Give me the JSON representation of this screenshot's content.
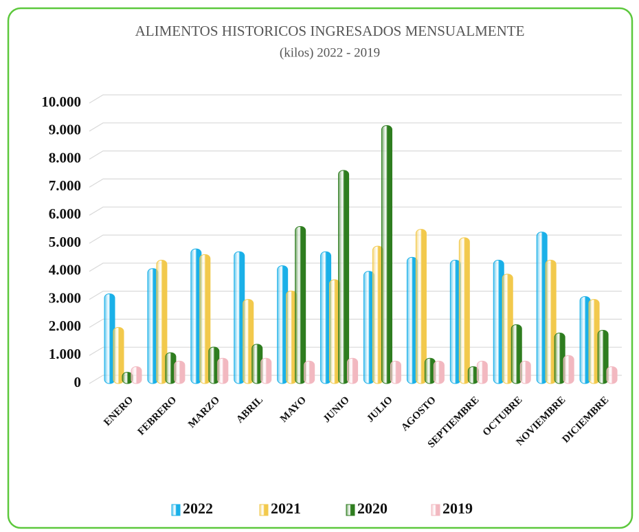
{
  "chart_data": {
    "type": "bar",
    "title": "ALIMENTOS HISTORICOS INGRESADOS MENSUALMENTE",
    "subtitle": "(kilos) 2022 - 2019",
    "categories": [
      "ENERO",
      "FEBRERO",
      "MARZO",
      "ABRIL",
      "MAYO",
      "JUNIO",
      "JULIO",
      "AGOSTO",
      "SEPTIEMBRE",
      "OCTUBRE",
      "NOVIEMBRE",
      "DICIEMBRE"
    ],
    "series": [
      {
        "name": "2022",
        "color": "#1ab0e8",
        "values": [
          3200,
          4100,
          4800,
          4700,
          4200,
          4700,
          4000,
          4500,
          4400,
          4400,
          5400,
          3100
        ]
      },
      {
        "name": "2021",
        "color": "#f2c94c",
        "values": [
          2000,
          4400,
          4600,
          3000,
          3300,
          3700,
          4900,
          5500,
          5200,
          3900,
          4400,
          3000
        ]
      },
      {
        "name": "2020",
        "color": "#2e7d1f",
        "values": [
          400,
          1100,
          1300,
          1400,
          5600,
          7600,
          9200,
          900,
          600,
          2100,
          1800,
          1900
        ]
      },
      {
        "name": "2019",
        "color": "#f2b8c0",
        "values": [
          600,
          800,
          900,
          900,
          800,
          900,
          800,
          800,
          800,
          800,
          1000,
          600
        ]
      }
    ],
    "ylim": [
      0,
      10000
    ],
    "yticks": [
      0,
      {
        "value": 1000,
        "label": "1.000"
      },
      {
        "value": 2000,
        "label": "2.000"
      },
      {
        "value": 3000,
        "label": "3.000"
      },
      {
        "value": 4000,
        "label": "4.000"
      },
      {
        "value": 5000,
        "label": "5.000"
      },
      {
        "value": 6000,
        "label": "6.000"
      },
      {
        "value": 7000,
        "label": "7.000"
      },
      {
        "value": 8000,
        "label": "8.000"
      },
      {
        "value": 9000,
        "label": "9.000"
      },
      {
        "value": 10000,
        "label": "10.000"
      }
    ],
    "grid": true,
    "legend": "bottom"
  }
}
